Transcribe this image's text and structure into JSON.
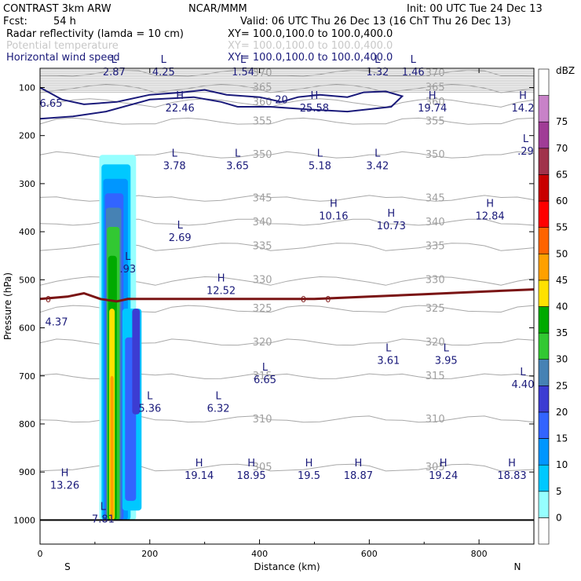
{
  "header": {
    "title": "CONTRAST  3km ARW",
    "producer": "NCAR/MMM",
    "init": "Init: 00 UTC Tue 24 Dec 13",
    "fcst_label": "Fcst:",
    "fcst_value": "54 h",
    "valid": "Valid: 06 UTC Thu 26 Dec 13 (16 ChT Thu 26 Dec 13)",
    "fields": [
      {
        "name": "Radar reflectivity (lamda = 10 cm)",
        "xy": "XY= 100.0,100.0 to 100.0,400.0",
        "color": "#000000"
      },
      {
        "name": "Potential temperature",
        "xy": "XY= 100.0,100.0 to 100.0,400.0",
        "color": "#c8c8c8"
      },
      {
        "name": "Horizontal wind speed",
        "xy": "XY= 100.0,100.0 to 100.0,400.0",
        "color": "#1a1a7a"
      }
    ]
  },
  "chart_data": {
    "type": "heatmap",
    "xlabel": "Distance (km)",
    "ylabel": "Pressure (hPa)",
    "xlim": [
      0,
      900
    ],
    "ylim": [
      1050,
      60
    ],
    "x_ticks": [
      "0",
      "200",
      "400",
      "600",
      "800"
    ],
    "y_ticks": [
      "100",
      "200",
      "300",
      "400",
      "500",
      "600",
      "700",
      "800",
      "900",
      "1000"
    ],
    "x_ends": {
      "left": "S",
      "right": "N"
    },
    "colorbar": {
      "unit": "dBZ",
      "levels": [
        "0",
        "5",
        "10",
        "15",
        "20",
        "25",
        "30",
        "35",
        "40",
        "45",
        "50",
        "55",
        "60",
        "65",
        "70",
        "75"
      ],
      "colors": [
        "#ffffff",
        "#96ffff",
        "#00c8ff",
        "#0096ff",
        "#3264ff",
        "#3c3cd2",
        "#4682b4",
        "#32c832",
        "#00aa00",
        "#ffe100",
        "#ffa000",
        "#ff6400",
        "#ff0000",
        "#c80000",
        "#a0324b",
        "#a03c96",
        "#c882c8",
        "#ffffff"
      ]
    },
    "theta_contours": [
      {
        "label": "370",
        "p": 70
      },
      {
        "label": "365",
        "p": 100
      },
      {
        "label": "360",
        "p": 130
      },
      {
        "label": "355",
        "p": 170
      },
      {
        "label": "350",
        "p": 240
      },
      {
        "label": "345",
        "p": 330
      },
      {
        "label": "340",
        "p": 380
      },
      {
        "label": "335",
        "p": 430
      },
      {
        "label": "330",
        "p": 500
      },
      {
        "label": "325",
        "p": 560
      },
      {
        "label": "320",
        "p": 630
      },
      {
        "label": "315",
        "p": 700
      },
      {
        "label": "310",
        "p": 790
      },
      {
        "label": "305",
        "p": 890
      }
    ],
    "wind_labels": [
      {
        "hl": "L",
        "value": "2.87",
        "x": 135,
        "p": 65
      },
      {
        "hl": "L",
        "value": "4.25",
        "x": 225,
        "p": 65
      },
      {
        "hl": "L",
        "value": "1.54",
        "x": 370,
        "p": 65
      },
      {
        "hl": "L",
        "value": "1.32",
        "x": 615,
        "p": 65
      },
      {
        "hl": "L",
        "value": "1.46",
        "x": 680,
        "p": 65
      },
      {
        "hl": "",
        "value": "6.65",
        "x": 20,
        "p": 130
      },
      {
        "hl": "H",
        "value": "22.46",
        "x": 255,
        "p": 140
      },
      {
        "hl": "",
        "value": "20",
        "x": 440,
        "p": 123
      },
      {
        "hl": "H",
        "value": "25.58",
        "x": 500,
        "p": 140
      },
      {
        "hl": "H",
        "value": "19.74",
        "x": 715,
        "p": 140
      },
      {
        "hl": "H",
        "value": "14.2",
        "x": 880,
        "p": 140
      },
      {
        "hl": "L",
        "value": "3.78",
        "x": 245,
        "p": 260
      },
      {
        "hl": "L",
        "value": "3.65",
        "x": 360,
        "p": 260
      },
      {
        "hl": "L",
        "value": "5.18",
        "x": 510,
        "p": 260
      },
      {
        "hl": "L",
        "value": "3.42",
        "x": 615,
        "p": 260
      },
      {
        "hl": "L",
        "value": ".29",
        "x": 885,
        "p": 230
      },
      {
        "hl": "H",
        "value": "10.16",
        "x": 535,
        "p": 365
      },
      {
        "hl": "H",
        "value": "10.73",
        "x": 640,
        "p": 385
      },
      {
        "hl": "H",
        "value": "12.84",
        "x": 820,
        "p": 365
      },
      {
        "hl": "L",
        "value": "2.69",
        "x": 255,
        "p": 410
      },
      {
        "hl": "L",
        "value": ".93",
        "x": 160,
        "p": 475
      },
      {
        "hl": "H",
        "value": "12.52",
        "x": 330,
        "p": 520
      },
      {
        "hl": "",
        "value": "4.37",
        "x": 30,
        "p": 585
      },
      {
        "hl": "L",
        "value": "3.61",
        "x": 635,
        "p": 665
      },
      {
        "hl": "L",
        "value": "3.95",
        "x": 740,
        "p": 665
      },
      {
        "hl": "L",
        "value": "4.40",
        "x": 880,
        "p": 715
      },
      {
        "hl": "L",
        "value": "6.65",
        "x": 410,
        "p": 705
      },
      {
        "hl": "L",
        "value": "5.36",
        "x": 200,
        "p": 765
      },
      {
        "hl": "L",
        "value": "6.32",
        "x": 325,
        "p": 765
      },
      {
        "hl": "H",
        "value": "19.14",
        "x": 290,
        "p": 905
      },
      {
        "hl": "H",
        "value": "18.95",
        "x": 385,
        "p": 905
      },
      {
        "hl": "H",
        "value": "19.5",
        "x": 490,
        "p": 905
      },
      {
        "hl": "H",
        "value": "18.87",
        "x": 580,
        "p": 905
      },
      {
        "hl": "H",
        "value": "19.24",
        "x": 735,
        "p": 905
      },
      {
        "hl": "H",
        "value": "18.83",
        "x": 860,
        "p": 905
      },
      {
        "hl": "H",
        "value": "13.26",
        "x": 45,
        "p": 925
      },
      {
        "hl": "L",
        "value": "7.81",
        "x": 115,
        "p": 995
      }
    ],
    "zero_isotherm_label": "0",
    "freezing_line": [
      [
        0,
        540
      ],
      [
        50,
        535
      ],
      [
        80,
        528
      ],
      [
        110,
        540
      ],
      [
        140,
        545
      ],
      [
        160,
        540
      ],
      [
        200,
        540
      ],
      [
        300,
        540
      ],
      [
        400,
        540
      ],
      [
        500,
        540
      ],
      [
        600,
        535
      ],
      [
        700,
        530
      ],
      [
        800,
        525
      ],
      [
        900,
        520
      ]
    ]
  }
}
